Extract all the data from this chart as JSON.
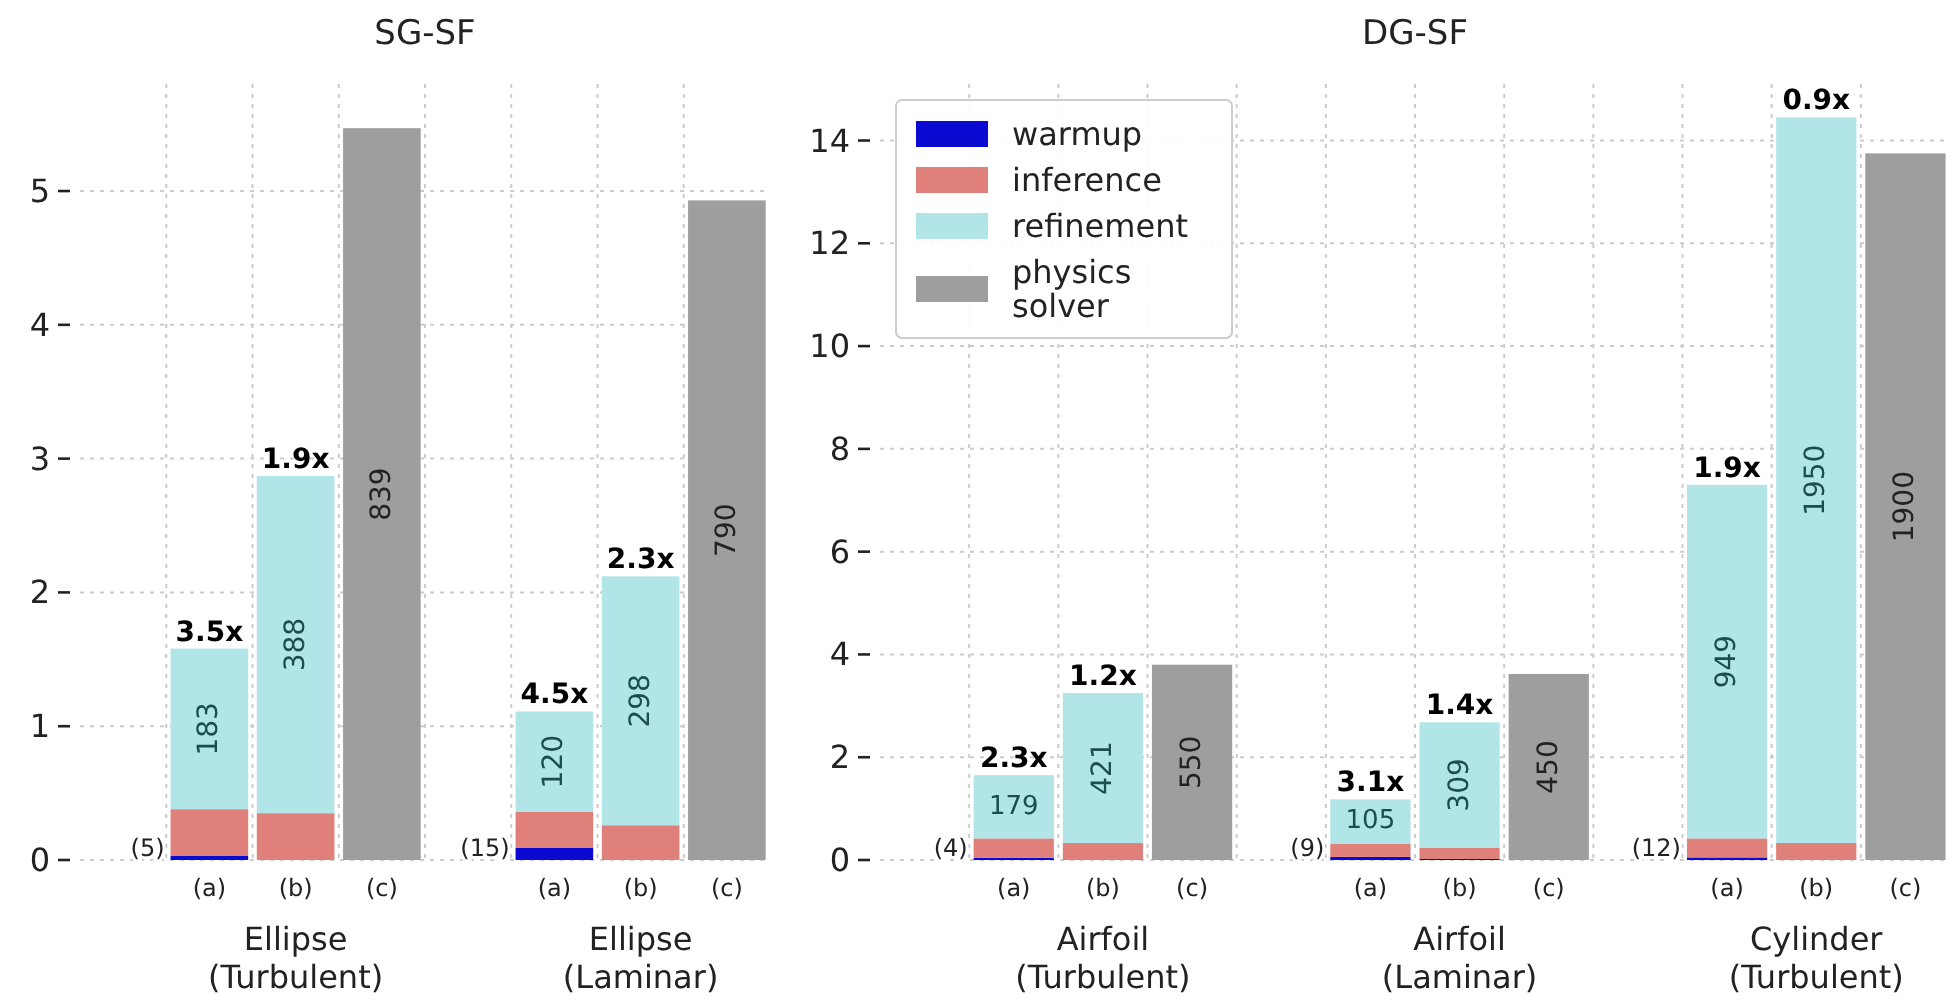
{
  "chart_data": [
    {
      "type": "bar",
      "title": "SG-SF",
      "stacked": true,
      "grid": true,
      "legend": false,
      "ylim": [
        0,
        5.8
      ],
      "yticks": [
        0,
        1,
        2,
        3,
        4,
        5
      ],
      "categories": [
        null,
        "(a)",
        "(b)",
        "(c)",
        null,
        "(a)",
        "(b)",
        "(c)"
      ],
      "series": [
        {
          "color": "#0a0ad2",
          "values": [
            null,
            0.03,
            null,
            null,
            null,
            0.09,
            null,
            null
          ]
        },
        {
          "color": "#e0807b",
          "values": [
            null,
            0.35,
            0.35,
            null,
            null,
            0.27,
            0.26,
            null
          ]
        },
        {
          "color": "#b2e5e7",
          "values": [
            null,
            1.2,
            2.52,
            null,
            null,
            0.75,
            1.86,
            null
          ]
        },
        {
          "color": "#9e9e9e",
          "values": [
            null,
            null,
            null,
            5.47,
            null,
            null,
            null,
            4.93
          ]
        }
      ],
      "annotations": [
        "(5)",
        "183",
        "3.5x",
        "388",
        "1.9x",
        "839",
        "(15)",
        "120",
        "4.5x",
        "298",
        "2.3x",
        "790",
        "Ellipse\n(Turbulent)",
        "Ellipse\n(Laminar)"
      ]
    },
    {
      "type": "bar",
      "title": "DG-SF",
      "stacked": true,
      "grid": true,
      "legend": "top left",
      "ylim": [
        0,
        15.1
      ],
      "yticks": [
        0,
        2,
        4,
        6,
        8,
        10,
        12,
        14
      ],
      "categories": [
        null,
        "(a)",
        "(b)",
        "(c)",
        null,
        "(a)",
        "(b)",
        "(c)",
        null,
        "(a)",
        "(b)",
        "(c)"
      ],
      "series": [
        {
          "name": "warmup",
          "color": "#0a0ad2",
          "values": [
            null,
            0.04,
            null,
            null,
            null,
            0.06,
            0.02,
            null,
            null,
            0.05,
            null,
            null
          ]
        },
        {
          "name": "inference",
          "color": "#e0807b",
          "values": [
            null,
            0.38,
            0.33,
            null,
            null,
            0.26,
            0.22,
            null,
            null,
            0.37,
            0.33,
            null
          ]
        },
        {
          "name": "refinement",
          "color": "#b2e5e7",
          "values": [
            null,
            1.23,
            2.92,
            null,
            null,
            0.86,
            2.44,
            null,
            null,
            6.88,
            14.12,
            null
          ]
        },
        {
          "name": "physics solver",
          "color": "#9e9e9e",
          "values": [
            null,
            null,
            null,
            3.8,
            null,
            null,
            null,
            3.62,
            null,
            null,
            null,
            13.75
          ]
        }
      ],
      "annotations": [
        "(4)",
        "179",
        "2.3x",
        "421",
        "1.2x",
        "550",
        "(9)",
        "105",
        "3.1x",
        "309",
        "1.4x",
        "450",
        "(12)",
        "949",
        "1.9x",
        "1950",
        "0.9x",
        "1900",
        "Airfoil\n(Turbulent)",
        "Airfoil\n(Laminar)",
        "Cylinder\n(Turbulent)"
      ]
    }
  ]
}
